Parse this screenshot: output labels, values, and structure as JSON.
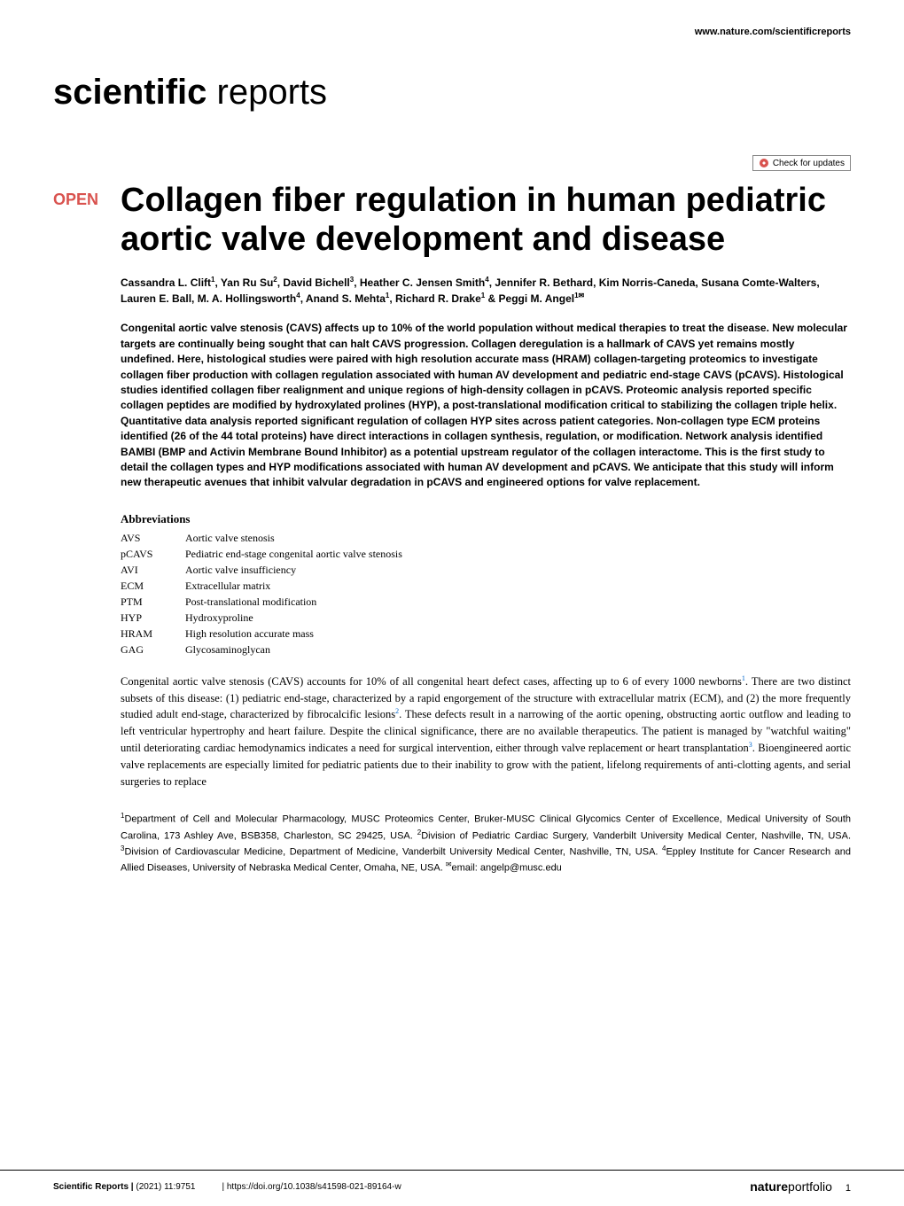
{
  "journal": {
    "url": "www.nature.com/scientificreports",
    "logo_bold": "scientific",
    "logo_light": " reports",
    "portfolio_bold": "nature",
    "portfolio_light": "portfolio"
  },
  "check_updates": "Check for updates",
  "open_badge": "OPEN",
  "title": "Collagen fiber regulation in human pediatric aortic valve development and disease",
  "authors_html": "Cassandra L. Clift<sup>1</sup>, Yan Ru Su<sup>2</sup>, David Bichell<sup>3</sup>, Heather C. Jensen Smith<sup>4</sup>, Jennifer R. Bethard, Kim Norris-Caneda, Susana Comte-Walters, Lauren E. Ball, M. A. Hollingsworth<sup>4</sup>, Anand S. Mehta<sup>1</sup>, Richard R. Drake<sup>1</sup> & Peggi M. Angel<sup>1✉</sup>",
  "abstract": "Congenital aortic valve stenosis (CAVS) affects up to 10% of the world population without medical therapies to treat the disease. New molecular targets are continually being sought that can halt CAVS progression. Collagen deregulation is a hallmark of CAVS yet remains mostly undefined. Here, histological studies were paired with high resolution accurate mass (HRAM) collagen-targeting proteomics to investigate collagen fiber production with collagen regulation associated with human AV development and pediatric end-stage CAVS (pCAVS). Histological studies identified collagen fiber realignment and unique regions of high-density collagen in pCAVS. Proteomic analysis reported specific collagen peptides are modified by hydroxylated prolines (HYP), a post-translational modification critical to stabilizing the collagen triple helix. Quantitative data analysis reported significant regulation of collagen HYP sites across patient categories. Non-collagen type ECM proteins identified (26 of the 44 total proteins) have direct interactions in collagen synthesis, regulation, or modification. Network analysis identified BAMBI (BMP and Activin Membrane Bound Inhibitor) as a potential upstream regulator of the collagen interactome. This is the first study to detail the collagen types and HYP modifications associated with human AV development and pCAVS. We anticipate that this study will inform new therapeutic avenues that inhibit valvular degradation in pCAVS and engineered options for valve replacement.",
  "abbrev_heading": "Abbreviations",
  "abbreviations": [
    {
      "key": "AVS",
      "val": "Aortic valve stenosis"
    },
    {
      "key": "pCAVS",
      "val": "Pediatric end-stage congenital aortic valve stenosis"
    },
    {
      "key": "AVI",
      "val": "Aortic valve insufficiency"
    },
    {
      "key": "ECM",
      "val": "Extracellular matrix"
    },
    {
      "key": "PTM",
      "val": "Post-translational modification"
    },
    {
      "key": "HYP",
      "val": "Hydroxyproline"
    },
    {
      "key": "HRAM",
      "val": "High resolution accurate mass"
    },
    {
      "key": "GAG",
      "val": "Glycosaminoglycan"
    }
  ],
  "body_paragraph_html": "Congenital aortic valve stenosis (CAVS) accounts for 10% of all congenital heart defect cases, affecting up to 6 of every 1000 newborns<sup>1</sup>. There are two distinct subsets of this disease: (1) pediatric end-stage, characterized by a rapid engorgement of the structure with extracellular matrix (ECM), and (2) the more frequently studied adult end-stage, characterized by fibrocalcific lesions<sup>2</sup>. These defects result in a narrowing of the aortic opening, obstructing aortic outflow and leading to left ventricular hypertrophy and heart failure. Despite the clinical significance, there are no available therapeutics. The patient is managed by \"watchful waiting\" until deteriorating cardiac hemodynamics indicates a need for surgical intervention, either through valve replacement or heart transplantation<sup>3</sup>. Bioengineered aortic valve replacements are especially limited for pediatric patients due to their inability to grow with the patient, lifelong requirements of anti-clotting agents, and serial surgeries to replace",
  "affiliations_html": "<sup>1</sup>Department of Cell and Molecular Pharmacology, MUSC Proteomics Center, Bruker-MUSC Clinical Glycomics Center of Excellence, Medical University of South Carolina, 173 Ashley Ave, BSB358, Charleston, SC 29425, USA. <sup>2</sup>Division of Pediatric Cardiac Surgery, Vanderbilt University Medical Center, Nashville, TN, USA. <sup>3</sup>Division of Cardiovascular Medicine, Department of Medicine, Vanderbilt University Medical Center, Nashville, TN, USA. <sup>4</sup>Eppley Institute for Cancer Research and Allied Diseases, University of Nebraska Medical Center, Omaha, NE, USA. <sup>✉</sup>email: angelp@musc.edu",
  "footer": {
    "journal": "Scientific Reports |",
    "citation": "(2021) 11:9751",
    "doi": "| https://doi.org/10.1038/s41598-021-89164-w",
    "page": "1"
  },
  "colors": {
    "open_badge": "#d9534f",
    "link": "#0066cc",
    "text": "#000000",
    "background": "#ffffff"
  }
}
